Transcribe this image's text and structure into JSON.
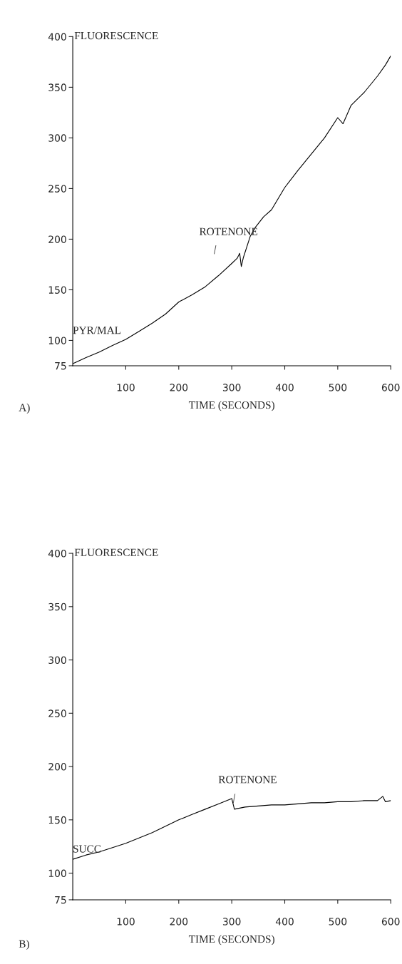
{
  "chart_data": [
    {
      "type": "line",
      "title": "A)",
      "xlabel": "TIME (SECONDS)",
      "ylabel": "FLUORESCENCE",
      "xlim": [
        0,
        600
      ],
      "xticks": [
        100,
        200,
        300,
        400,
        500,
        600
      ],
      "ylim": [
        75,
        400
      ],
      "yticks": [
        75,
        100,
        150,
        200,
        250,
        300,
        350,
        400
      ],
      "grid": false,
      "legend": false,
      "marker": "none",
      "line_style": "solid",
      "annotations": [
        "PYR/MAL",
        "ROTENONE"
      ],
      "series": [
        {
          "color": "#000000",
          "x": [
            0,
            25,
            50,
            75,
            100,
            125,
            150,
            175,
            200,
            225,
            250,
            275,
            300,
            310,
            315,
            318,
            322,
            335,
            345,
            360,
            375,
            400,
            425,
            450,
            475,
            500,
            510,
            525,
            550,
            575,
            590,
            600
          ],
          "values": [
            77,
            83,
            88.5,
            95,
            101,
            109,
            117,
            126,
            138,
            145,
            153,
            164,
            176,
            181,
            186,
            173,
            182,
            203,
            212,
            222,
            229,
            251,
            268,
            284,
            300,
            320,
            314,
            332,
            345,
            361,
            372,
            381
          ]
        }
      ]
    },
    {
      "type": "line",
      "title": "B)",
      "xlabel": "TIME (SECONDS)",
      "ylabel": "FLUORESCENCE",
      "xlim": [
        0,
        600
      ],
      "xticks": [
        100,
        200,
        300,
        400,
        500,
        600
      ],
      "ylim": [
        75,
        400
      ],
      "yticks": [
        75,
        100,
        150,
        200,
        250,
        300,
        350,
        400
      ],
      "grid": false,
      "legend": false,
      "marker": "none",
      "line_style": "solid",
      "annotations": [
        "SUCC",
        "ROTENONE"
      ],
      "series": [
        {
          "color": "#000000",
          "x": [
            0,
            25,
            50,
            75,
            100,
            125,
            150,
            175,
            200,
            225,
            250,
            275,
            290,
            300,
            305,
            325,
            350,
            375,
            400,
            425,
            450,
            475,
            500,
            525,
            550,
            575,
            585,
            590,
            600
          ],
          "values": [
            113,
            117,
            120,
            124,
            128,
            133,
            138,
            144,
            150,
            155,
            160,
            165,
            168,
            170,
            160,
            162,
            163,
            164,
            164,
            165,
            166,
            166,
            167,
            167,
            168,
            168,
            172,
            167,
            168
          ]
        }
      ]
    }
  ]
}
